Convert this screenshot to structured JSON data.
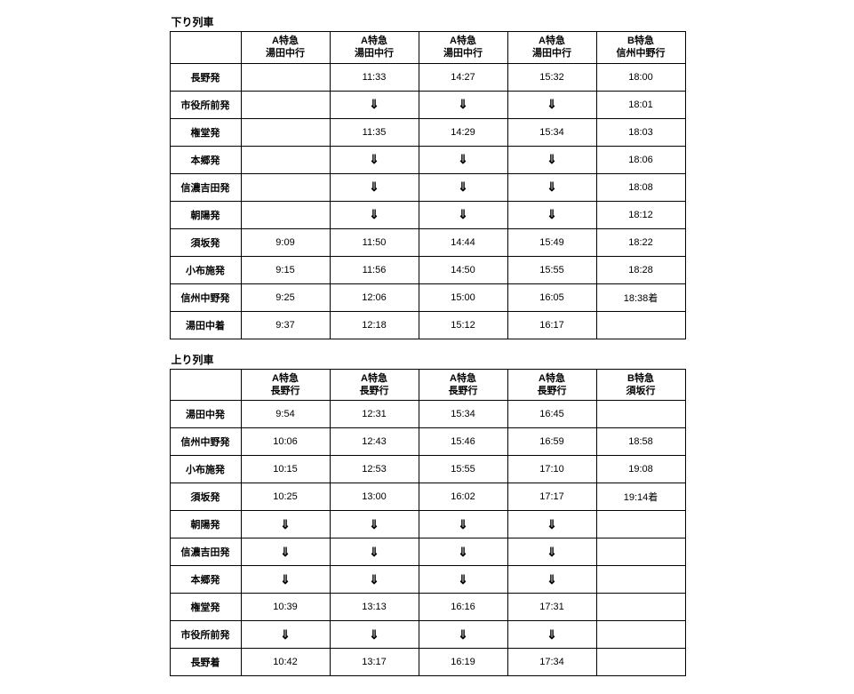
{
  "tables": [
    {
      "title": "下り列車",
      "headers": [
        "",
        "A特急\n湯田中行",
        "A特急\n湯田中行",
        "A特急\n湯田中行",
        "A特急\n湯田中行",
        "B特急\n信州中野行"
      ],
      "rows": [
        [
          "長野発",
          "",
          "11:33",
          "14:27",
          "15:32",
          "18:00"
        ],
        [
          "市役所前発",
          "",
          "⇓",
          "⇓",
          "⇓",
          "18:01"
        ],
        [
          "権堂発",
          "",
          "11:35",
          "14:29",
          "15:34",
          "18:03"
        ],
        [
          "本郷発",
          "",
          "⇓",
          "⇓",
          "⇓",
          "18:06"
        ],
        [
          "信濃吉田発",
          "",
          "⇓",
          "⇓",
          "⇓",
          "18:08"
        ],
        [
          "朝陽発",
          "",
          "⇓",
          "⇓",
          "⇓",
          "18:12"
        ],
        [
          "須坂発",
          "9:09",
          "11:50",
          "14:44",
          "15:49",
          "18:22"
        ],
        [
          "小布施発",
          "9:15",
          "11:56",
          "14:50",
          "15:55",
          "18:28"
        ],
        [
          "信州中野発",
          "9:25",
          "12:06",
          "15:00",
          "16:05",
          "18:38着"
        ],
        [
          "湯田中着",
          "9:37",
          "12:18",
          "15:12",
          "16:17",
          ""
        ]
      ]
    },
    {
      "title": "上り列車",
      "headers": [
        "",
        "A特急\n長野行",
        "A特急\n長野行",
        "A特急\n長野行",
        "A特急\n長野行",
        "B特急\n須坂行"
      ],
      "rows": [
        [
          "湯田中発",
          "9:54",
          "12:31",
          "15:34",
          "16:45",
          ""
        ],
        [
          "信州中野発",
          "10:06",
          "12:43",
          "15:46",
          "16:59",
          "18:58"
        ],
        [
          "小布施発",
          "10:15",
          "12:53",
          "15:55",
          "17:10",
          "19:08"
        ],
        [
          "須坂発",
          "10:25",
          "13:00",
          "16:02",
          "17:17",
          "19:14着"
        ],
        [
          "朝陽発",
          "⇓",
          "⇓",
          "⇓",
          "⇓",
          ""
        ],
        [
          "信濃吉田発",
          "⇓",
          "⇓",
          "⇓",
          "⇓",
          ""
        ],
        [
          "本郷発",
          "⇓",
          "⇓",
          "⇓",
          "⇓",
          ""
        ],
        [
          "権堂発",
          "10:39",
          "13:13",
          "16:16",
          "17:31",
          ""
        ],
        [
          "市役所前発",
          "⇓",
          "⇓",
          "⇓",
          "⇓",
          ""
        ],
        [
          "長野着",
          "10:42",
          "13:17",
          "16:19",
          "17:34",
          ""
        ]
      ]
    }
  ],
  "arrow_glyph": "⇓"
}
